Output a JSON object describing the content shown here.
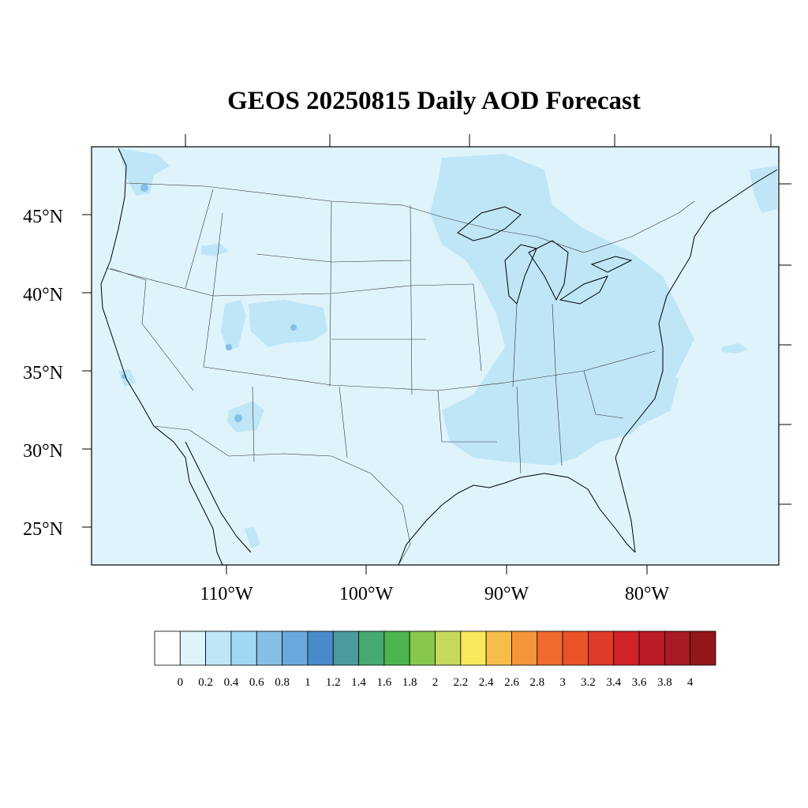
{
  "title": "GEOS 20250815 Daily AOD Forecast",
  "lat_labels": [
    "45°N",
    "40°N",
    "35°N",
    "30°N",
    "25°N"
  ],
  "lon_labels": [
    "110°W",
    "100°W",
    "90°W",
    "80°W"
  ],
  "colorbar": {
    "labels": [
      "0",
      "0.2",
      "0.4",
      "0.6",
      "0.8",
      "1",
      "1.2",
      "1.4",
      "1.6",
      "1.8",
      "2",
      "2.2",
      "2.4",
      "2.6",
      "2.8",
      "3",
      "3.2",
      "3.4",
      "3.6",
      "3.8",
      "4"
    ],
    "colors": [
      "#ffffff",
      "#dff3fb",
      "#bee6f7",
      "#a1d7f3",
      "#84c0e6",
      "#69a8dc",
      "#4a8bc9",
      "#4a9c9c",
      "#47a871",
      "#4bb54c",
      "#86c84d",
      "#c5d95a",
      "#f8e85c",
      "#f7bd4a",
      "#f4943b",
      "#f06a2f",
      "#ea532a",
      "#e03a28",
      "#d12129",
      "#bd1b27",
      "#a91a22",
      "#931719"
    ]
  },
  "colors": {
    "background_aod": "#dff3fb",
    "elevated_aod": "#bee6f7",
    "hotspot_aod": "#84c0e6",
    "outline": "#000000"
  }
}
